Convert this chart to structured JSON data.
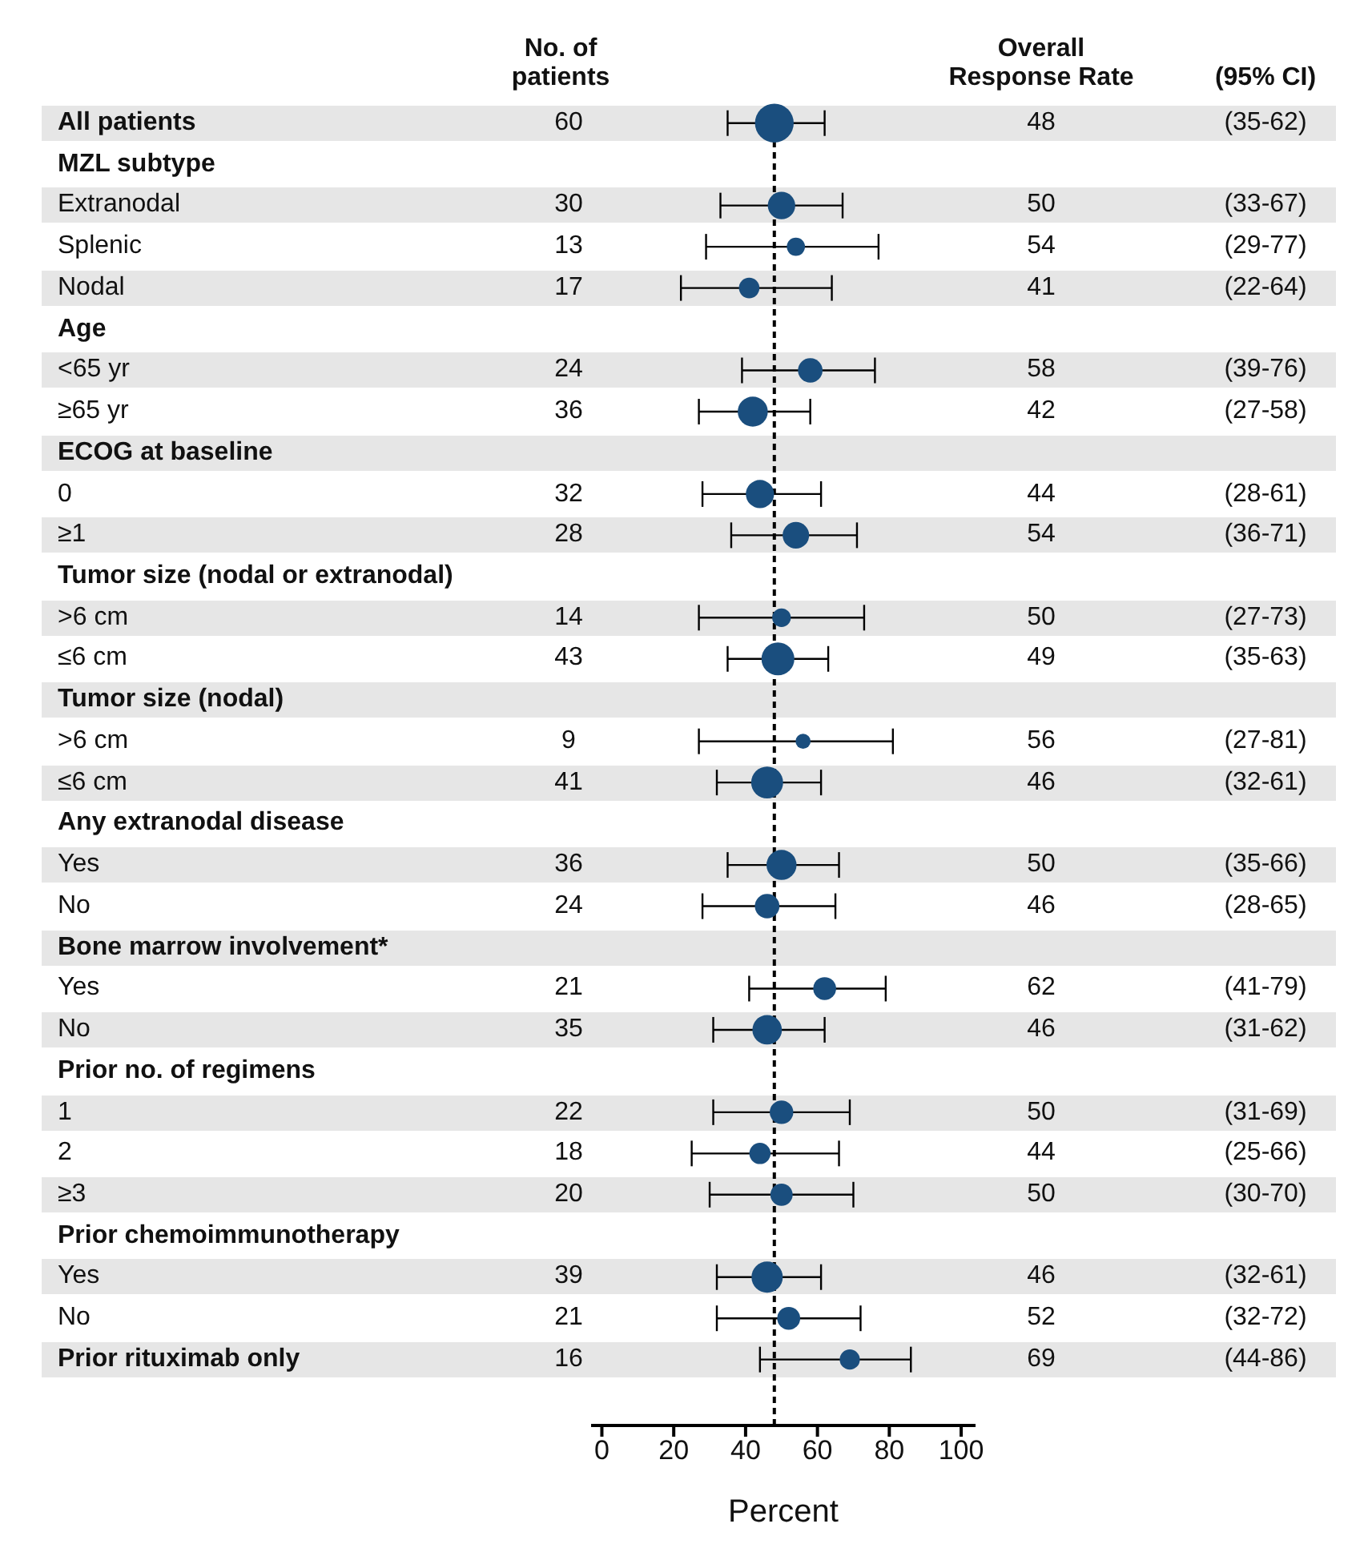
{
  "chart_data": {
    "type": "bubble",
    "orientation": "horizontal",
    "xlabel": "Percent",
    "xlim": [
      -3,
      104
    ],
    "xticks": [
      0,
      20,
      40,
      60,
      80,
      100
    ],
    "data_labels": true,
    "grid": false,
    "legend": false,
    "annotations": [
      "No. of patients",
      "Overall Response Rate",
      "(95% CI)",
      "60",
      "30",
      "13",
      "17",
      "24",
      "36",
      "32",
      "28",
      "14",
      "43",
      "9",
      "41",
      "36",
      "24",
      "21",
      "35",
      "22",
      "18",
      "20",
      "39",
      "21",
      "16",
      "(35-62)",
      "(33-67)",
      "(29-77)",
      "(22-64)",
      "(39-76)",
      "(27-58)",
      "(28-61)",
      "(36-71)",
      "(27-73)",
      "(35-63)",
      "(27-81)",
      "(32-61)",
      "(35-66)",
      "(28-65)",
      "(41-79)",
      "(31-62)",
      "(31-69)",
      "(25-66)",
      "(30-70)",
      "(32-61)",
      "(32-72)",
      "(44-86)"
    ],
    "ref_lines": [
      {
        "axis": "x",
        "value": 48,
        "line_style": "dashed",
        "color": "#000000"
      }
    ],
    "categories": [
      "All patients",
      "MZL subtype",
      "Extranodal",
      "Splenic",
      "Nodal",
      "Age",
      "<65 yr",
      "≥65 yr",
      "ECOG at baseline",
      "0",
      "≥1",
      "Tumor size (nodal or extranodal)",
      ">6 cm",
      "≤6 cm",
      "Tumor size (nodal)",
      ">6 cm",
      "≤6 cm",
      "Any extranodal disease",
      "Yes",
      "No",
      "Bone marrow involvement*",
      "Yes",
      "No",
      "Prior no. of regimens",
      "1",
      "2",
      "≥3",
      "Prior chemoimmunotherapy",
      "Yes",
      "No",
      "Prior rituximab only"
    ],
    "series": [
      {
        "color": "#1a4e7e",
        "values": [
          48,
          null,
          50,
          54,
          41,
          null,
          58,
          42,
          null,
          44,
          54,
          null,
          50,
          49,
          null,
          56,
          46,
          null,
          50,
          46,
          null,
          62,
          46,
          null,
          50,
          44,
          50,
          null,
          46,
          52,
          69
        ],
        "sizes": [
          1,
          null,
          0.5,
          0.22,
          0.28,
          null,
          0.4,
          0.6,
          null,
          0.53,
          0.47,
          null,
          0.23,
          0.72,
          null,
          0.15,
          0.68,
          null,
          0.6,
          0.4,
          null,
          0.35,
          0.58,
          null,
          0.37,
          0.3,
          0.33,
          null,
          0.65,
          0.35,
          0.27
        ],
        "errors": [
          [
            35,
            62
          ],
          null,
          [
            33,
            67
          ],
          [
            29,
            77
          ],
          [
            22,
            64
          ],
          null,
          [
            39,
            76
          ],
          [
            27,
            58
          ],
          null,
          [
            28,
            61
          ],
          [
            36,
            71
          ],
          null,
          [
            27,
            73
          ],
          [
            35,
            63
          ],
          null,
          [
            27,
            81
          ],
          [
            32,
            61
          ],
          null,
          [
            35,
            66
          ],
          [
            28,
            65
          ],
          null,
          [
            41,
            79
          ],
          [
            31,
            62
          ],
          null,
          [
            31,
            69
          ],
          [
            25,
            66
          ],
          [
            30,
            70
          ],
          null,
          [
            32,
            61
          ],
          [
            32,
            72
          ],
          [
            44,
            86
          ]
        ]
      }
    ]
  }
}
